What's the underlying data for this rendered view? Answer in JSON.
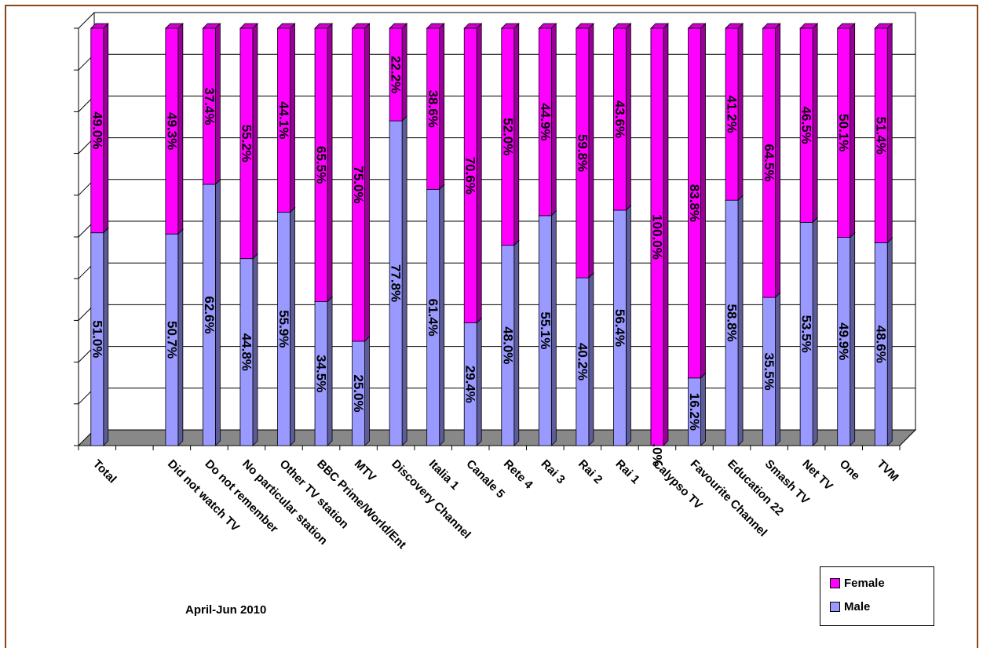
{
  "chart_data": {
    "type": "bar",
    "stacked": true,
    "percent_stacked": true,
    "subtitle": "April-Jun 2010",
    "categories": [
      "Total",
      "",
      "Did not watch TV",
      "Do not remember",
      "No particular station",
      "Other TV station",
      "BBC Prime/World/Ent",
      "MTV",
      "Discovery Channel",
      "Italia 1",
      "Canale 5",
      "Rete 4",
      "Rai 3",
      "Rai 2",
      "Rai 1",
      "Calypso TV",
      "Favourite Channel",
      "Education 22",
      "Smash TV",
      "Net TV",
      "One",
      "TVM"
    ],
    "series": [
      {
        "name": "Male",
        "color": "#9999FF",
        "values": [
          51.0,
          null,
          50.7,
          62.6,
          44.8,
          55.9,
          34.5,
          25.0,
          77.8,
          61.4,
          29.4,
          48.0,
          55.1,
          40.2,
          56.4,
          0.0,
          16.2,
          58.8,
          35.5,
          53.5,
          49.9,
          48.6
        ],
        "labels": [
          "51.0%",
          "",
          "50.7%",
          "62.6%",
          "44.8%",
          "55.9%",
          "34.5%",
          "25.0%",
          "77.8%",
          "61.4%",
          "29.4%",
          "48.0%",
          "55.1%",
          "40.2%",
          "56.4%",
          ".0%",
          "16.2%",
          "58.8%",
          "35.5%",
          "53.5%",
          "49.9%",
          "48.6%"
        ]
      },
      {
        "name": "Female",
        "color": "#FF00FF",
        "values": [
          49.0,
          null,
          49.3,
          37.4,
          55.2,
          44.1,
          65.5,
          75.0,
          22.2,
          38.6,
          70.6,
          52.0,
          44.9,
          59.8,
          43.6,
          100.0,
          83.8,
          41.2,
          64.5,
          46.5,
          50.1,
          51.4
        ],
        "labels": [
          "49.0%",
          "",
          "49.3%",
          "37.4%",
          "55.2%",
          "44.1%",
          "65.5%",
          "75.0%",
          "22.2%",
          "38.6%",
          "70.6%",
          "52.0%",
          "44.9%",
          "59.8%",
          "43.6%",
          "100.0%",
          "83.8%",
          "41.2%",
          "64.5%",
          "46.5%",
          "50.1%",
          "51.4%"
        ]
      }
    ],
    "ylim": [
      0,
      100
    ],
    "grid": true,
    "legend_position": "bottom-right"
  },
  "legend": {
    "female": "Female",
    "male": "Male"
  }
}
